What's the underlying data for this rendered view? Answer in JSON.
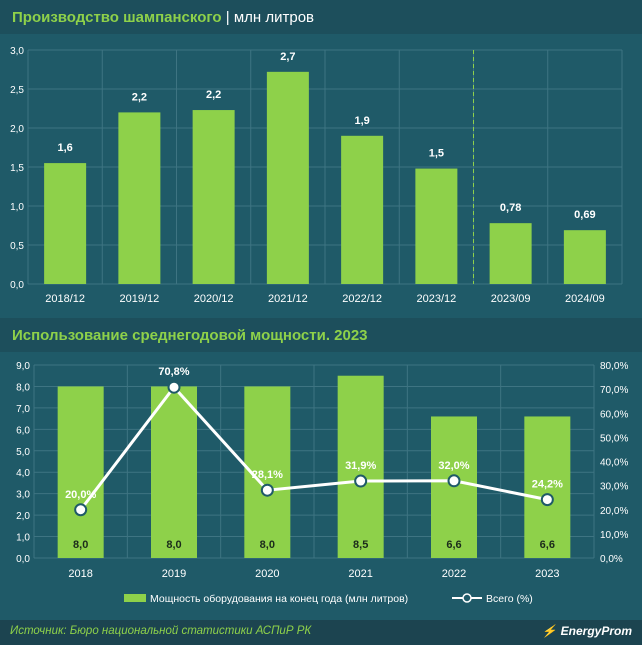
{
  "chart1": {
    "title_main": "Производство шампанского",
    "title_unit": "млн литров",
    "chart_data": {
      "type": "bar",
      "categories": [
        "2018/12",
        "2019/12",
        "2020/12",
        "2021/12",
        "2022/12",
        "2023/12",
        "2023/09",
        "2024/09"
      ],
      "values": [
        1.55,
        2.2,
        2.23,
        2.72,
        1.9,
        1.48,
        0.78,
        0.69
      ],
      "value_labels": [
        "1,6",
        "2,2",
        "2,2",
        "2,7",
        "1,9",
        "1,5",
        "0,78",
        "0,69"
      ],
      "ylim": [
        0,
        3.0
      ],
      "yticks": [
        "0,0",
        "0,5",
        "1,0",
        "1,5",
        "2,0",
        "2,5",
        "3,0"
      ],
      "title": "Производство шампанского | млн литров",
      "grid": true
    }
  },
  "chart2": {
    "title": "Использование среднегодовой мощности. 2023",
    "chart_data": {
      "type": "bar",
      "categories": [
        "2018",
        "2019",
        "2020",
        "2021",
        "2022",
        "2023"
      ],
      "series": [
        {
          "name": "Мощность оборудования на конец года (млн литров)",
          "values": [
            8.0,
            8.0,
            8.0,
            8.5,
            6.6,
            6.6
          ],
          "labels": [
            "8,0",
            "8,0",
            "8,0",
            "8,5",
            "6,6",
            "6,6"
          ]
        },
        {
          "name": "Всего (%)",
          "type": "line",
          "values": [
            20.0,
            70.8,
            28.1,
            31.9,
            32.0,
            24.2
          ],
          "labels": [
            "20,0%",
            "70,8%",
            "28,1%",
            "31,9%",
            "32,0%",
            "24,2%"
          ]
        }
      ],
      "ylim_left": [
        0,
        9
      ],
      "ylim_right": [
        0,
        80
      ],
      "yticks_left": [
        "0,0",
        "1,0",
        "2,0",
        "3,0",
        "4,0",
        "5,0",
        "6,0",
        "7,0",
        "8,0",
        "9,0"
      ],
      "yticks_right": [
        "0,0%",
        "10,0%",
        "20,0%",
        "30,0%",
        "40,0%",
        "50,0%",
        "60,0%",
        "70,0%",
        "80,0%"
      ],
      "legend_placement": "bottom",
      "grid": true
    }
  },
  "footer": {
    "source": "Источник: Бюро национальной статистики АСПиР РК",
    "logo": "EnergyProm"
  },
  "colors": {
    "background": "#1f5a68",
    "bar": "#8ed14a",
    "line": "#ffffff",
    "grid": "#3e7482",
    "accent": "#8ed14a"
  }
}
